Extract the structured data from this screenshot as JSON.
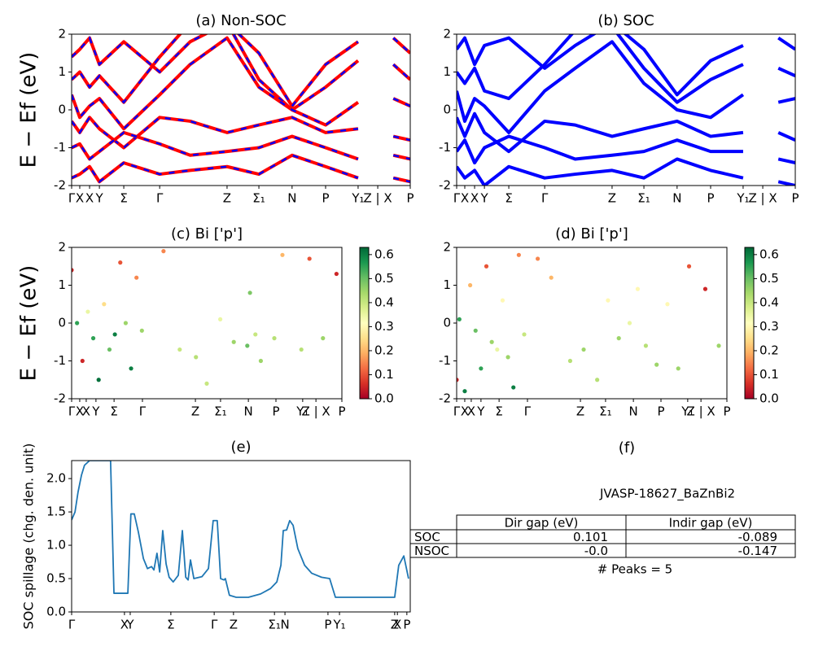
{
  "chart_data": [
    {
      "type": "line",
      "title": "(a) Non-SOC",
      "ylabel": "E − Ef (eV)",
      "style": "dashed",
      "color": "#ff0000",
      "dash_color": "#0000ff",
      "xlim": [
        0,
        100
      ],
      "ylim": [
        -2,
        2
      ],
      "yticks": [
        -2,
        -1,
        0,
        1,
        2
      ],
      "xticks": [
        {
          "value": 0,
          "label": "Γ"
        },
        {
          "value": 2.4,
          "label": "X"
        },
        {
          "value": 5.3,
          "label": "X"
        },
        {
          "value": 8.2,
          "label": "Y"
        },
        {
          "value": 15.4,
          "label": "Σ"
        },
        {
          "value": 26,
          "label": "Γ"
        },
        {
          "value": 45.9,
          "label": "Z"
        },
        {
          "value": 55.3,
          "label": "Σ₁"
        },
        {
          "value": 65.1,
          "label": "N"
        },
        {
          "value": 75,
          "label": "P"
        },
        {
          "value": 84.6,
          "label": "Y₁"
        },
        {
          "value": 90.4,
          "label": "Z | X"
        },
        {
          "value": 100,
          "label": "P"
        }
      ],
      "x": [
        0,
        2.4,
        5.3,
        8.2,
        15.4,
        26,
        35,
        45.9,
        55.3,
        65.1,
        75,
        84.6,
        90.4,
        95,
        100
      ],
      "series": [
        {
          "values": [
            1.4,
            1.6,
            1.9,
            1.2,
            1.8,
            1.0,
            1.8,
            2.3,
            1.5,
            0.1,
            1.2,
            1.8,
            null,
            1.9,
            1.5
          ]
        },
        {
          "values": [
            0.8,
            1.0,
            0.6,
            0.9,
            0.2,
            1.4,
            2.3,
            2.3,
            0.8,
            0.0,
            0.6,
            1.3,
            null,
            1.2,
            0.8
          ]
        },
        {
          "values": [
            0.4,
            -0.2,
            0.1,
            0.3,
            -0.5,
            0.4,
            1.2,
            1.9,
            0.6,
            0.0,
            -0.4,
            0.2,
            null,
            0.3,
            0.1
          ]
        },
        {
          "values": [
            -0.3,
            -0.6,
            -0.2,
            -0.5,
            -1.0,
            -0.2,
            -0.3,
            -0.6,
            -0.4,
            -0.2,
            -0.6,
            -0.5,
            null,
            -0.7,
            -0.8
          ]
        },
        {
          "values": [
            -1.0,
            -0.9,
            -1.3,
            -1.1,
            -0.6,
            -0.9,
            -1.2,
            -1.1,
            -1.0,
            -0.7,
            -1.0,
            -1.3,
            null,
            -1.2,
            -1.3
          ]
        },
        {
          "values": [
            -1.8,
            -1.7,
            -1.5,
            -1.9,
            -1.4,
            -1.7,
            -1.6,
            -1.5,
            -1.7,
            -1.2,
            -1.5,
            -1.8,
            null,
            -1.8,
            -1.9
          ]
        }
      ]
    },
    {
      "type": "line",
      "title": "(b) SOC",
      "style": "solid",
      "color": "#0000ff",
      "xlim": [
        0,
        100
      ],
      "ylim": [
        -2,
        2
      ],
      "yticks": [
        -2,
        -1,
        0,
        1,
        2
      ],
      "xticks": [
        {
          "value": 0,
          "label": "Γ"
        },
        {
          "value": 2.4,
          "label": "X"
        },
        {
          "value": 5.3,
          "label": "X"
        },
        {
          "value": 8.2,
          "label": "Y"
        },
        {
          "value": 15.4,
          "label": "Σ"
        },
        {
          "value": 26,
          "label": "Γ"
        },
        {
          "value": 45.9,
          "label": "Z"
        },
        {
          "value": 55.3,
          "label": "Σ₁"
        },
        {
          "value": 65.1,
          "label": "N"
        },
        {
          "value": 75,
          "label": "P"
        },
        {
          "value": 84.6,
          "label": "Y₁"
        },
        {
          "value": 90.4,
          "label": "Z | X"
        },
        {
          "value": 100,
          "label": "P"
        }
      ],
      "x": [
        0,
        2.4,
        5.3,
        8.2,
        15.4,
        26,
        35,
        45.9,
        55.3,
        65.1,
        75,
        84.6,
        90.4,
        95,
        100
      ],
      "series": [
        {
          "values": [
            1.6,
            1.9,
            1.2,
            1.7,
            1.9,
            1.1,
            1.7,
            2.3,
            1.6,
            0.4,
            1.3,
            1.7,
            null,
            1.9,
            1.6
          ]
        },
        {
          "values": [
            1.0,
            0.7,
            1.1,
            0.5,
            0.3,
            1.2,
            2.1,
            2.2,
            1.1,
            0.2,
            0.8,
            1.2,
            null,
            1.1,
            0.9
          ]
        },
        {
          "values": [
            0.5,
            -0.3,
            0.3,
            0.1,
            -0.6,
            0.5,
            1.1,
            1.8,
            0.7,
            0.0,
            -0.2,
            0.4,
            null,
            0.2,
            0.3
          ]
        },
        {
          "values": [
            -0.2,
            -0.7,
            -0.1,
            -0.6,
            -1.1,
            -0.3,
            -0.4,
            -0.7,
            -0.5,
            -0.3,
            -0.7,
            -0.6,
            null,
            -0.6,
            -0.8
          ]
        },
        {
          "values": [
            -1.1,
            -0.8,
            -1.4,
            -1.0,
            -0.7,
            -1.0,
            -1.3,
            -1.2,
            -1.1,
            -0.8,
            -1.1,
            -1.1,
            null,
            -1.3,
            -1.4
          ]
        },
        {
          "values": [
            -1.5,
            -1.8,
            -1.6,
            -2.0,
            -1.5,
            -1.8,
            -1.7,
            -1.6,
            -1.8,
            -1.3,
            -1.6,
            -1.8,
            null,
            -1.9,
            -2.0
          ]
        }
      ]
    },
    {
      "type": "scatter",
      "title": "(c)  Bi ['p']",
      "ylabel": "E − Ef (eV)",
      "colormap": "RdYlGn",
      "xlim": [
        0,
        100
      ],
      "ylim": [
        -2,
        2
      ],
      "yticks": [
        -2,
        -1,
        0,
        1,
        2
      ],
      "clim": [
        0,
        0.63
      ],
      "cticks": [
        {
          "value": 0,
          "label": "0.0"
        },
        {
          "value": 0.1,
          "label": "0.1"
        },
        {
          "value": 0.2,
          "label": "0.2"
        },
        {
          "value": 0.3,
          "label": "0.3"
        },
        {
          "value": 0.4,
          "label": "0.4"
        },
        {
          "value": 0.5,
          "label": "0.5"
        },
        {
          "value": 0.6,
          "label": "0.6"
        }
      ],
      "xticks": [
        {
          "value": 0,
          "label": "Γ"
        },
        {
          "value": 3,
          "label": "X"
        },
        {
          "value": 5.4,
          "label": "X"
        },
        {
          "value": 9,
          "label": "Y"
        },
        {
          "value": 15.7,
          "label": "Σ"
        },
        {
          "value": 26.2,
          "label": "Γ"
        },
        {
          "value": 45.8,
          "label": "Z"
        },
        {
          "value": 55.1,
          "label": "Σ₁"
        },
        {
          "value": 65.4,
          "label": "N"
        },
        {
          "value": 75.6,
          "label": "P"
        },
        {
          "value": 85.5,
          "label": "Y₁"
        },
        {
          "value": 90.4,
          "label": "Z | X"
        },
        {
          "value": 100,
          "label": "P"
        }
      ],
      "x": [
        0,
        2,
        4,
        6,
        8,
        10,
        12,
        14,
        16,
        18,
        20,
        22,
        24,
        26,
        34,
        40,
        46,
        50,
        55,
        60,
        65,
        66,
        68,
        70,
        75,
        78,
        85,
        88,
        93,
        98
      ],
      "y": [
        1.4,
        0.0,
        -1.0,
        0.3,
        -0.4,
        -1.5,
        0.5,
        -0.7,
        -0.3,
        1.6,
        0.0,
        -1.2,
        1.2,
        -0.2,
        1.9,
        -0.7,
        -0.9,
        -1.6,
        0.1,
        -0.5,
        -0.6,
        0.8,
        -0.3,
        -1.0,
        -0.4,
        1.8,
        -0.7,
        1.7,
        -0.4,
        1.3
      ],
      "values": [
        0.05,
        0.55,
        0.05,
        0.35,
        0.55,
        0.62,
        0.25,
        0.5,
        0.6,
        0.1,
        0.45,
        0.6,
        0.15,
        0.45,
        0.15,
        0.4,
        0.42,
        0.4,
        0.35,
        0.45,
        0.5,
        0.48,
        0.4,
        0.45,
        0.42,
        0.2,
        0.42,
        0.1,
        0.45,
        0.05
      ]
    },
    {
      "type": "scatter",
      "title": "(d) Bi ['p']",
      "colormap": "RdYlGn",
      "xlim": [
        0,
        100
      ],
      "ylim": [
        -2,
        2
      ],
      "yticks": [
        -2,
        -1,
        0,
        1,
        2
      ],
      "clim": [
        0,
        0.63
      ],
      "cticks": [
        {
          "value": 0,
          "label": "0.0"
        },
        {
          "value": 0.1,
          "label": "0.1"
        },
        {
          "value": 0.2,
          "label": "0.2"
        },
        {
          "value": 0.3,
          "label": "0.3"
        },
        {
          "value": 0.4,
          "label": "0.4"
        },
        {
          "value": 0.5,
          "label": "0.5"
        },
        {
          "value": 0.6,
          "label": "0.6"
        }
      ],
      "xticks": [
        {
          "value": 0,
          "label": "Γ"
        },
        {
          "value": 3,
          "label": "X"
        },
        {
          "value": 5.4,
          "label": "X"
        },
        {
          "value": 9,
          "label": "Y"
        },
        {
          "value": 15.7,
          "label": "Σ"
        },
        {
          "value": 26.2,
          "label": "Γ"
        },
        {
          "value": 45.8,
          "label": "Z"
        },
        {
          "value": 55.1,
          "label": "Σ₁"
        },
        {
          "value": 65.4,
          "label": "N"
        },
        {
          "value": 75.6,
          "label": "P"
        },
        {
          "value": 85.5,
          "label": "Y₁"
        },
        {
          "value": 90.4,
          "label": "Z | X"
        },
        {
          "value": 100,
          "label": "P"
        }
      ],
      "x": [
        0,
        1,
        3,
        5,
        7,
        9,
        11,
        13,
        15,
        17,
        19,
        21,
        23,
        25,
        30,
        35,
        42,
        47,
        52,
        56,
        60,
        64,
        67,
        70,
        74,
        78,
        82,
        86,
        92,
        97
      ],
      "y": [
        -1.5,
        0.1,
        -1.8,
        1.0,
        -0.2,
        -1.2,
        1.5,
        -0.5,
        -0.7,
        0.6,
        -0.9,
        -1.7,
        1.8,
        -0.3,
        1.7,
        1.2,
        -1.0,
        -0.7,
        -1.5,
        0.6,
        -0.4,
        0.0,
        0.9,
        -0.6,
        -1.1,
        0.5,
        -1.2,
        1.5,
        0.9,
        -0.6
      ],
      "values": [
        0.05,
        0.55,
        0.6,
        0.2,
        0.5,
        0.55,
        0.1,
        0.45,
        0.35,
        0.3,
        0.45,
        0.6,
        0.15,
        0.4,
        0.15,
        0.2,
        0.42,
        0.45,
        0.42,
        0.3,
        0.45,
        0.35,
        0.3,
        0.42,
        0.45,
        0.3,
        0.45,
        0.1,
        0.05,
        0.45
      ]
    },
    {
      "type": "line",
      "title": "(e)",
      "ylabel": "SOC spillage (chg. den. unit)",
      "style": "solid",
      "color": "#1f77b4",
      "width": 1.8,
      "xlim": [
        0,
        100
      ],
      "ylim": [
        0,
        2.27
      ],
      "yticks": [
        {
          "value": 0,
          "label": "0.0"
        },
        {
          "value": 0.5,
          "label": "0.5"
        },
        {
          "value": 1,
          "label": "1.0"
        },
        {
          "value": 1.5,
          "label": "1.5"
        },
        {
          "value": 2,
          "label": "2.0"
        }
      ],
      "xticks": [
        {
          "value": 0,
          "label": "Γ"
        },
        {
          "value": 15.6,
          "label": "X"
        },
        {
          "value": 17.3,
          "label": "Y"
        },
        {
          "value": 29.3,
          "label": "Σ"
        },
        {
          "value": 42.1,
          "label": "Γ"
        },
        {
          "value": 47.8,
          "label": "Z"
        },
        {
          "value": 59.9,
          "label": "Σ₁"
        },
        {
          "value": 63,
          "label": "N"
        },
        {
          "value": 75.7,
          "label": "P"
        },
        {
          "value": 79.1,
          "label": "Y₁"
        },
        {
          "value": 95.4,
          "label": "Z"
        },
        {
          "value": 96.2,
          "label": "X"
        },
        {
          "value": 99,
          "label": "P"
        }
      ],
      "x": [
        0,
        1,
        1.9,
        2.9,
        3.8,
        5.3,
        11.5,
        12.5,
        16.6,
        17.5,
        18.5,
        19.7,
        21.2,
        22.4,
        23.6,
        24.3,
        25.2,
        26,
        26.9,
        27.9,
        28.8,
        30,
        31.5,
        32.7,
        33.7,
        34.4,
        35.1,
        36.1,
        38.5,
        40.4,
        41.8,
        43,
        44,
        45,
        45.4,
        46.6,
        48.6,
        52.2,
        55.8,
        58.7,
        60.6,
        61.8,
        62.5,
        63.5,
        64.4,
        65.4,
        66.8,
        68.8,
        70.9,
        73.8,
        76.2,
        77.9,
        95.4,
        96.6,
        98.1,
        99.5
      ],
      "series": [
        {
          "values": [
            1.38,
            1.5,
            1.8,
            2.05,
            2.2,
            2.27,
            2.27,
            0.28,
            0.28,
            1.47,
            1.47,
            1.2,
            0.8,
            0.65,
            0.68,
            0.63,
            0.88,
            0.6,
            1.22,
            0.72,
            0.52,
            0.45,
            0.55,
            1.22,
            0.52,
            0.48,
            0.78,
            0.5,
            0.53,
            0.65,
            1.37,
            1.37,
            0.5,
            0.48,
            0.5,
            0.25,
            0.22,
            0.22,
            0.27,
            0.35,
            0.45,
            0.7,
            1.22,
            1.23,
            1.37,
            1.3,
            0.95,
            0.7,
            0.58,
            0.52,
            0.5,
            0.22,
            0.22,
            0.7,
            0.84,
            0.5
          ]
        }
      ]
    }
  ],
  "table": {
    "title": "(f)",
    "subtitle": "JVASP-18627_BaZnBi2",
    "columns": [
      "Dir gap (eV)",
      "Indir gap (eV)"
    ],
    "rows": [
      [
        "SOC",
        "0.101",
        "-0.089"
      ],
      [
        "NSOC",
        "-0.0",
        "-0.147"
      ]
    ],
    "note": "# Peaks = 5"
  }
}
